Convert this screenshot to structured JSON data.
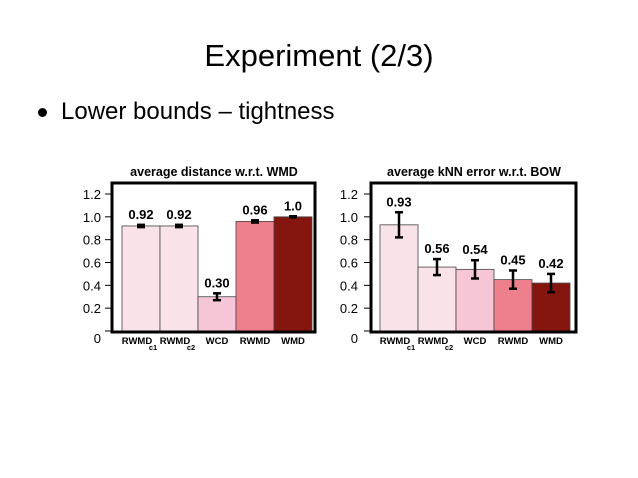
{
  "slide": {
    "title": "Experiment (2/3)",
    "bullet": "Lower bounds – tightness"
  },
  "chart_data": [
    {
      "type": "bar",
      "title": "average distance w.r.t. WMD",
      "categories": [
        {
          "label": "RWMD",
          "sub": "c1"
        },
        {
          "label": "RWMD",
          "sub": "c2"
        },
        {
          "label": "WCD",
          "sub": ""
        },
        {
          "label": "RWMD",
          "sub": ""
        },
        {
          "label": "WMD",
          "sub": ""
        }
      ],
      "values": [
        0.92,
        0.92,
        0.3,
        0.96,
        1.0
      ],
      "value_labels": [
        "0.92",
        "0.92",
        "0.30",
        "0.96",
        "1.0"
      ],
      "errors": [
        0.01,
        0.01,
        0.03,
        0.01,
        0.005
      ],
      "colors": [
        "#fae3e8",
        "#fae3e8",
        "#f6c6d6",
        "#ee808d",
        "#85160f"
      ],
      "yticks": [
        "0",
        "0.2",
        "0.4",
        "0.6",
        "0.8",
        "1.0",
        "1.2"
      ],
      "ylim": [
        0,
        1.2
      ],
      "grid": false
    },
    {
      "type": "bar",
      "title": "average kNN error w.r.t. BOW",
      "categories": [
        {
          "label": "RWMD",
          "sub": "c1"
        },
        {
          "label": "RWMD",
          "sub": "c2"
        },
        {
          "label": "WCD",
          "sub": ""
        },
        {
          "label": "RWMD",
          "sub": ""
        },
        {
          "label": "WMD",
          "sub": ""
        }
      ],
      "values": [
        0.93,
        0.56,
        0.54,
        0.45,
        0.42
      ],
      "value_labels": [
        "0.93",
        "0.56",
        "0.54",
        "0.45",
        "0.42"
      ],
      "errors": [
        0.11,
        0.07,
        0.08,
        0.08,
        0.08
      ],
      "colors": [
        "#fae3e8",
        "#fae3e8",
        "#f6c6d6",
        "#ee808d",
        "#85160f"
      ],
      "yticks": [
        "0",
        "0.2",
        "0.4",
        "0.6",
        "0.8",
        "1.0",
        "1.2"
      ],
      "ylim": [
        0,
        1.2
      ],
      "grid": false
    }
  ]
}
